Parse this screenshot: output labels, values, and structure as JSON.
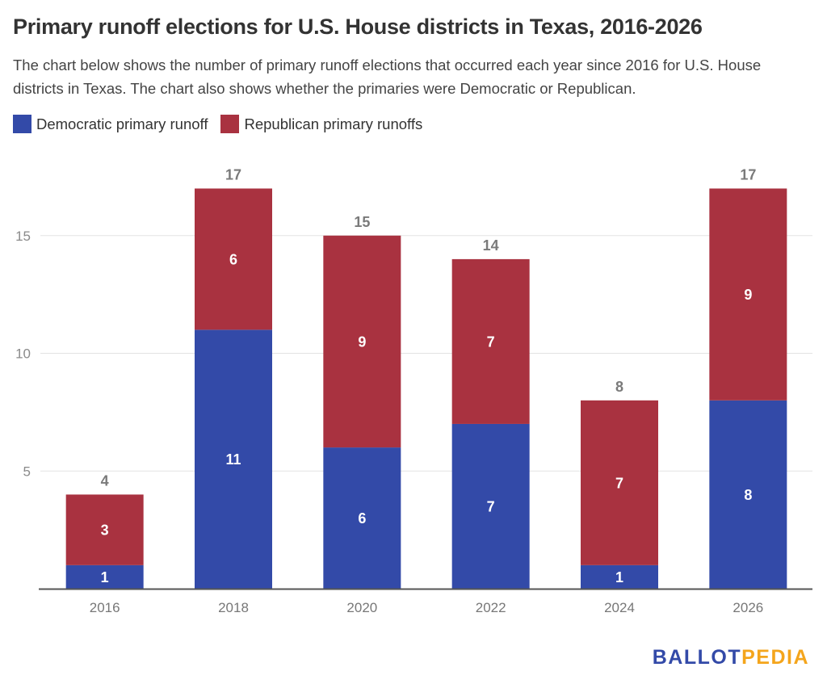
{
  "header": {
    "title": "Primary runoff elections for U.S. House districts in Texas, 2016-2026",
    "subtitle": "The chart below shows the number of primary runoff elections that occurred each year since 2016 for U.S. House districts in Texas. The chart also shows whether the primaries were Democratic or Republican."
  },
  "legend": {
    "items": [
      {
        "label": "Democratic primary runoff",
        "color": "#334aa8"
      },
      {
        "label": "Republican primary runoffs",
        "color": "#a93240"
      }
    ]
  },
  "logo": {
    "part1": "BALLOT",
    "part2": "PEDIA",
    "color1": "#334aa8",
    "color2": "#f4a51c"
  },
  "chart_data": {
    "type": "bar",
    "stacked": true,
    "title": "Primary runoff elections for U.S. House districts in Texas, 2016-2026",
    "xlabel": "",
    "ylabel": "",
    "categories": [
      "2016",
      "2018",
      "2020",
      "2022",
      "2024",
      "2026"
    ],
    "series": [
      {
        "name": "Democratic primary runoff",
        "color": "#334aa8",
        "values": [
          1,
          11,
          6,
          7,
          1,
          8
        ]
      },
      {
        "name": "Republican primary runoffs",
        "color": "#a93240",
        "values": [
          3,
          6,
          9,
          7,
          7,
          9
        ]
      }
    ],
    "totals": [
      4,
      17,
      15,
      14,
      8,
      17
    ],
    "ylim": [
      0,
      17
    ],
    "yticks": [
      5,
      10,
      15
    ],
    "grid": true,
    "legend_position": "top-left"
  }
}
